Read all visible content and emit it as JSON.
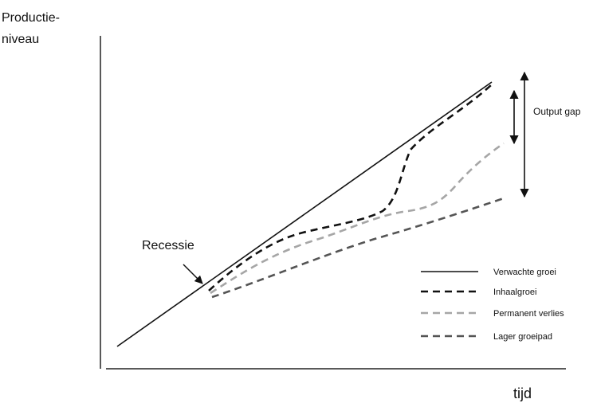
{
  "axes": {
    "y_label_line1": "Productie-",
    "y_label_line2": "niveau",
    "x_label": "tijd"
  },
  "annotations": {
    "recession": "Recessie",
    "output_gap": "Output gap"
  },
  "legend": [
    {
      "label": "Verwachte groei",
      "color": "#111111",
      "style": "solid"
    },
    {
      "label": "Inhaalgroei",
      "color": "#111111",
      "style": "dashed"
    },
    {
      "label": "Permanent verlies",
      "color": "#a6a6a6",
      "style": "dashed"
    },
    {
      "label": "Lager groeipad",
      "color": "#555555",
      "style": "dashed"
    }
  ]
}
